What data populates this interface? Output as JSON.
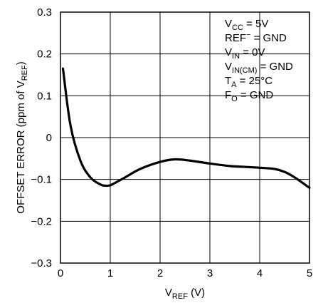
{
  "chart_data": {
    "type": "line",
    "title": "",
    "xlabel": {
      "base": "V",
      "sub": "REF",
      "rest": " (V)"
    },
    "ylabel": {
      "pre": "OFFSET ERROR (ppm of V",
      "sub": "REF",
      "post": ")"
    },
    "xlim": [
      0,
      5
    ],
    "ylim": [
      -0.3,
      0.3
    ],
    "x_ticks": [
      0,
      1,
      2,
      3,
      4,
      5
    ],
    "x_tick_labels": [
      "0",
      "1",
      "2",
      "3",
      "4",
      "5"
    ],
    "y_ticks": [
      0.3,
      0.2,
      0.1,
      0,
      -0.1,
      -0.2,
      -0.3
    ],
    "y_tick_labels": [
      "0.3",
      "0.2",
      "0.1",
      "0",
      "−0.1",
      "−0.2",
      "−0.3"
    ],
    "grid": true,
    "series": [
      {
        "x": [
          0.05,
          0.2,
          0.4,
          0.6,
          0.8,
          0.9,
          1.0,
          1.1,
          1.3,
          1.6,
          2.0,
          2.3,
          2.6,
          3.0,
          3.4,
          3.7,
          4.0,
          4.3,
          4.5,
          4.7,
          5.0
        ],
        "y": [
          0.165,
          0.03,
          -0.055,
          -0.095,
          -0.112,
          -0.115,
          -0.114,
          -0.108,
          -0.095,
          -0.075,
          -0.058,
          -0.052,
          -0.055,
          -0.062,
          -0.068,
          -0.07,
          -0.072,
          -0.075,
          -0.082,
          -0.095,
          -0.12
        ]
      }
    ],
    "conditions": [
      {
        "base": "V",
        "sub": "CC",
        "sup": "",
        "rest": " = 5V"
      },
      {
        "base": "REF",
        "sub": "",
        "sup": "−",
        "rest": " = GND"
      },
      {
        "base": "V",
        "sub": "IN",
        "sup": "",
        "rest": " = 0V"
      },
      {
        "base": "V",
        "sub": "IN(CM)",
        "sup": "",
        "rest": " = GND"
      },
      {
        "base": "T",
        "sub": "A",
        "sup": "",
        "rest": " = 25°C"
      },
      {
        "base": "F",
        "sub": "O",
        "sup": "",
        "rest": " = GND"
      }
    ]
  }
}
